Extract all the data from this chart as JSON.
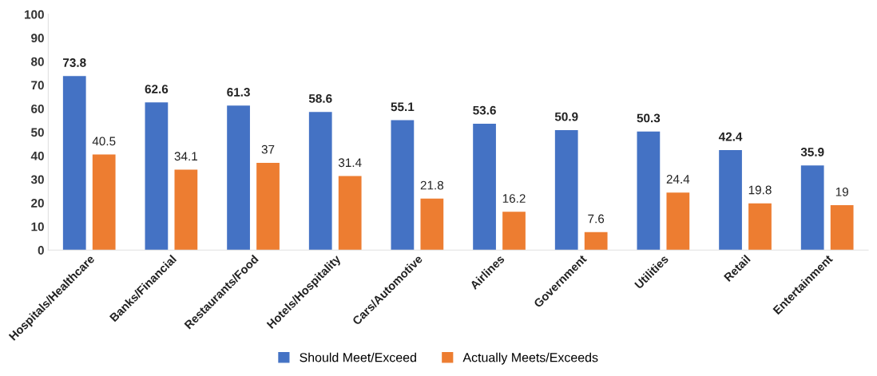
{
  "chart_data": {
    "type": "bar",
    "categories": [
      "Hospitals/Healthcare",
      "Banks/Financial",
      "Restaurants/Food",
      "Hotels/Hospitality",
      "Cars/Automotive",
      "Airlines",
      "Government",
      "Utilities",
      "Retail",
      "Entertainment"
    ],
    "series": [
      {
        "name": "Should Meet/Exceed",
        "color": "#4472c4",
        "values": [
          73.8,
          62.6,
          61.3,
          58.6,
          55.1,
          53.6,
          50.9,
          50.3,
          42.4,
          35.9
        ]
      },
      {
        "name": "Actually Meets/Exceeds",
        "color": "#ed7d31",
        "values": [
          40.5,
          34.1,
          37,
          31.4,
          21.8,
          16.2,
          7.6,
          24.4,
          19.8,
          19
        ]
      }
    ],
    "ylim": [
      0,
      100
    ],
    "yticks": [
      0,
      10,
      20,
      30,
      40,
      50,
      60,
      70,
      80,
      90,
      100
    ],
    "data_labels": true,
    "grid": false,
    "legend": "bottom"
  }
}
